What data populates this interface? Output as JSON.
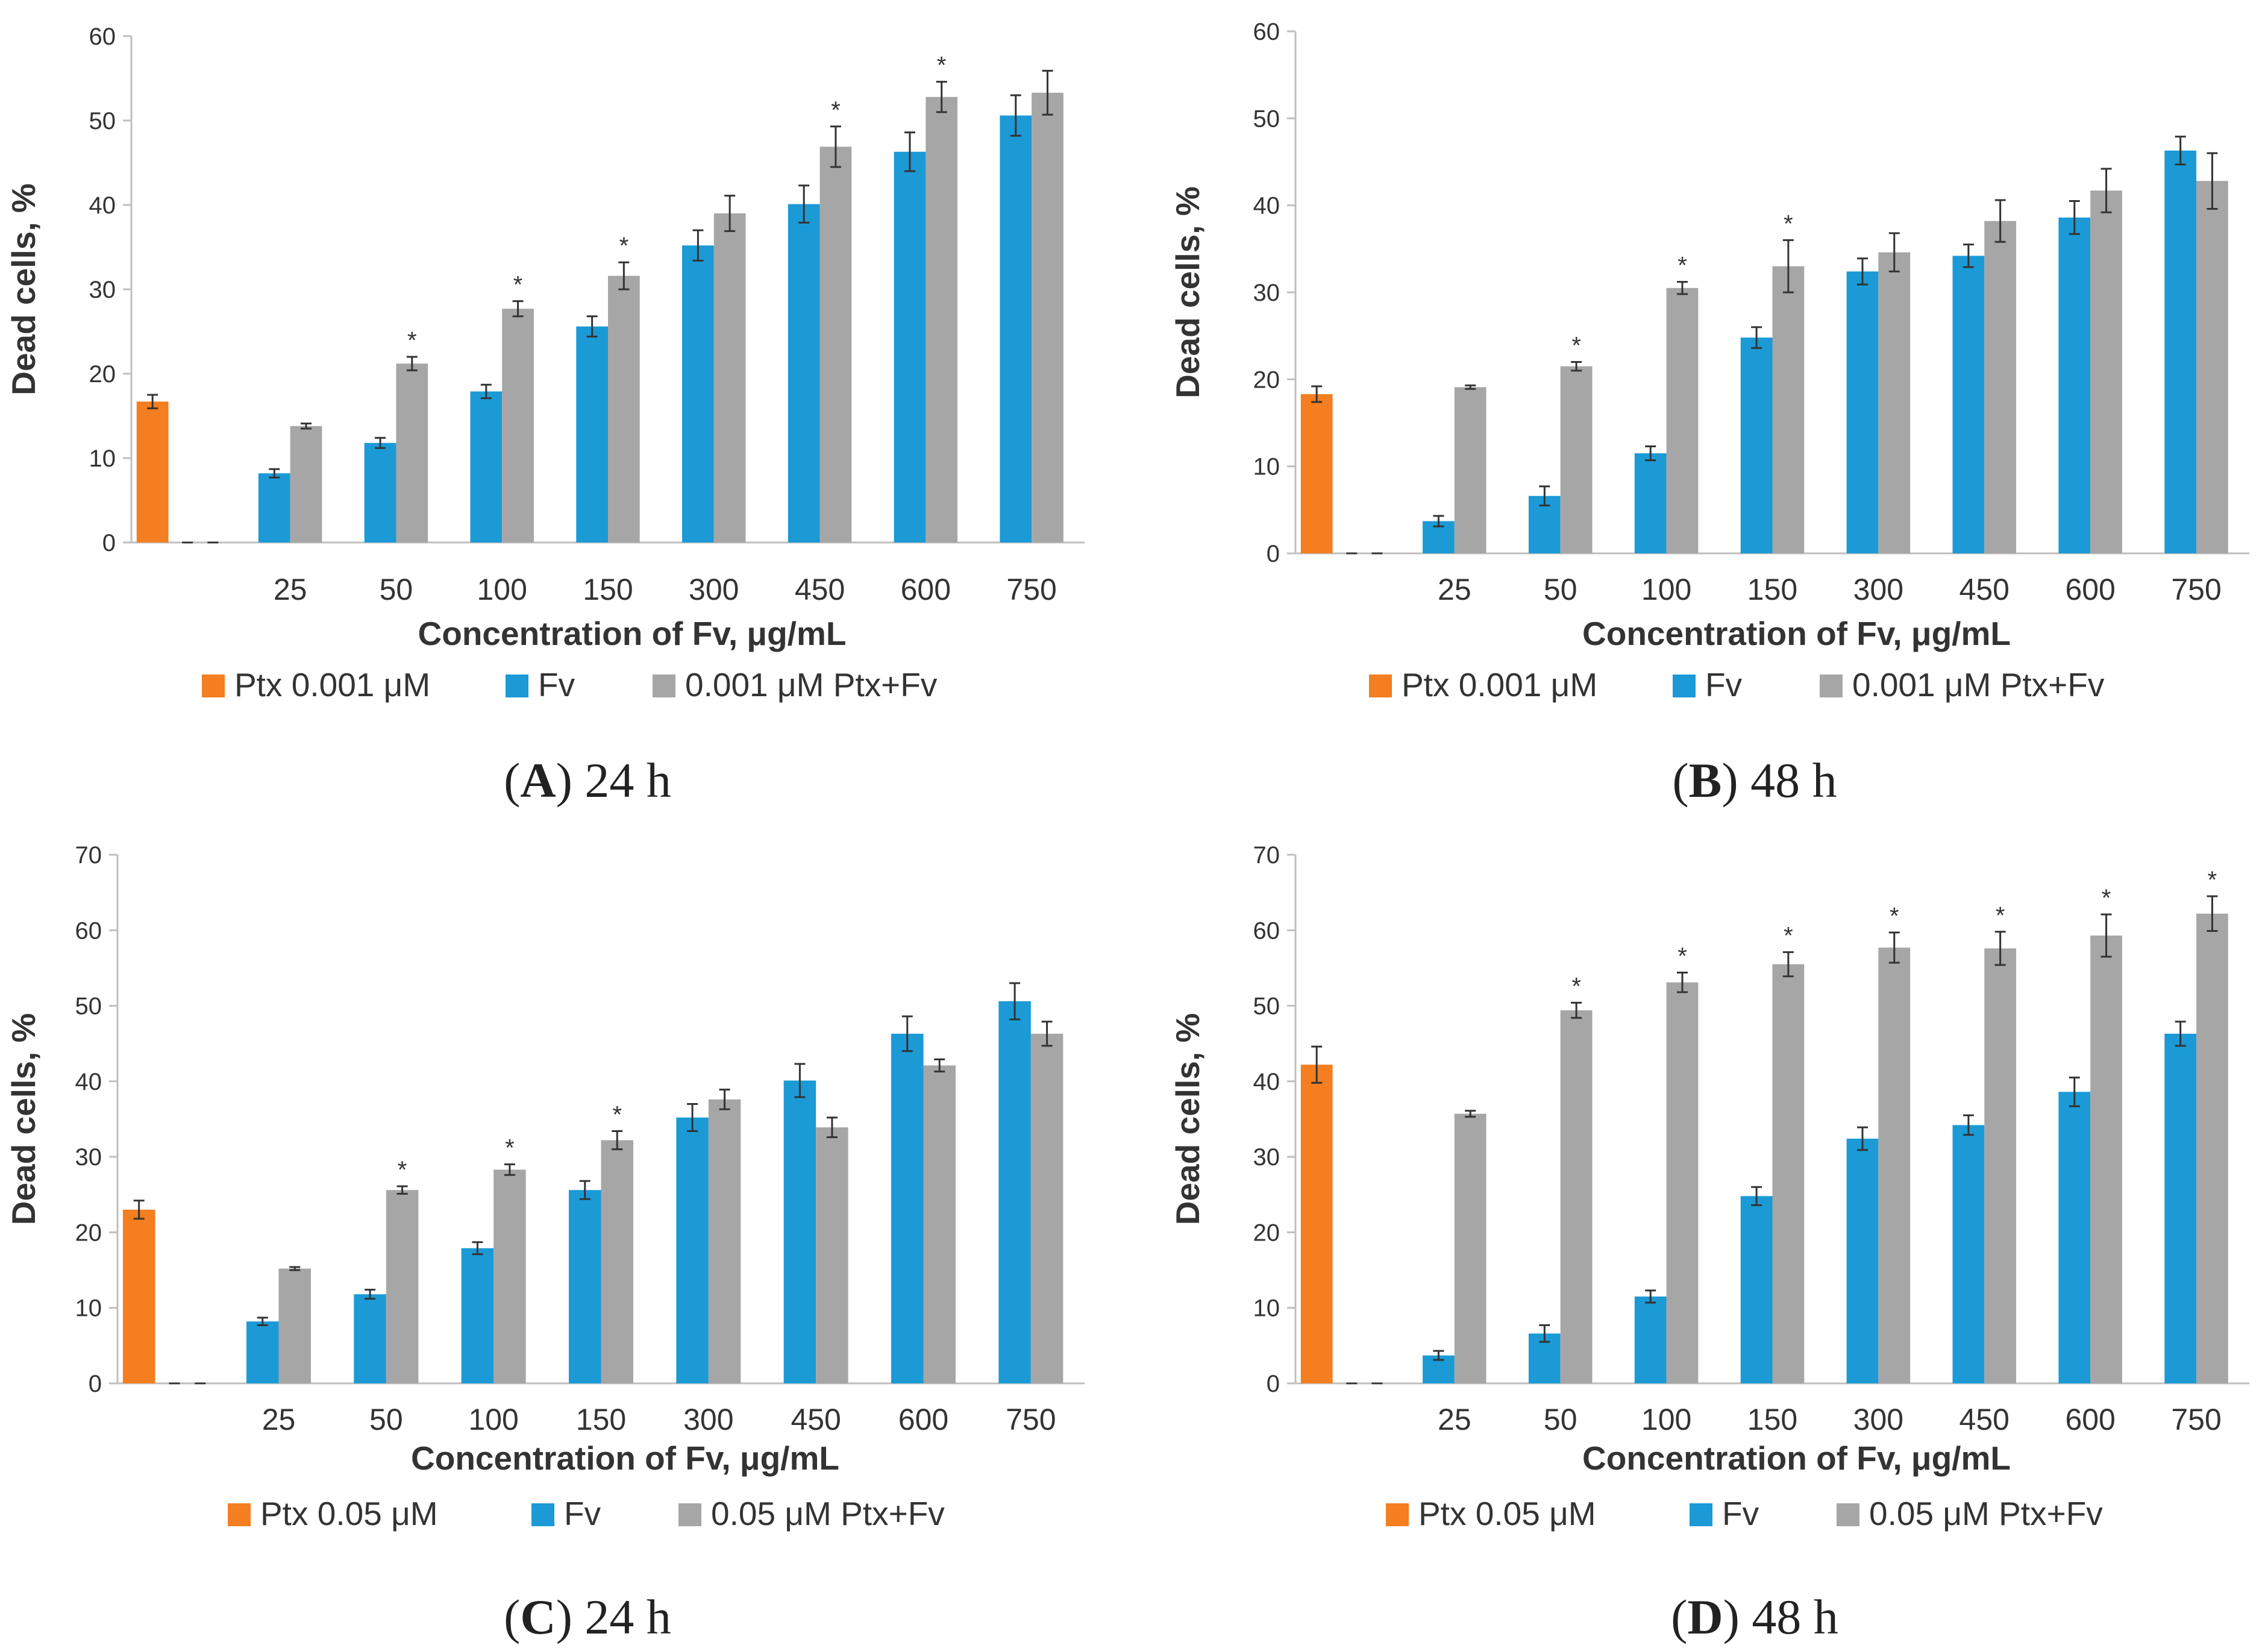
{
  "colors": {
    "ptx": "#F47E20",
    "fv": "#1B9AD6",
    "combo": "#A6A6A6",
    "axis": "#BFBFBF",
    "err": "#333333"
  },
  "chart_data": [
    {
      "type": "bar",
      "panel": "A",
      "caption_letter": "A",
      "caption_time": " 24 h",
      "title": "",
      "xlabel": "Concentration of Fv, μg/mL",
      "ylabel": "Dead cells, %",
      "ylim": [
        0,
        60
      ],
      "yticks": [
        "0",
        "10",
        "20",
        "30",
        "40",
        "50",
        "60"
      ],
      "categories": [
        "",
        "25",
        "50",
        "100",
        "150",
        "300",
        "450",
        "600",
        "750"
      ],
      "series": [
        {
          "name": "Ptx 0.001 μM",
          "color": "#F47E20",
          "values": [
            16.7,
            null,
            null,
            null,
            null,
            null,
            null,
            null,
            null
          ],
          "errors": [
            0.8,
            null,
            null,
            null,
            null,
            null,
            null,
            null,
            null
          ]
        },
        {
          "name": "Fv",
          "color": "#1B9AD6",
          "values": [
            0,
            8.2,
            11.8,
            17.9,
            25.6,
            35.2,
            40.1,
            46.3,
            50.6
          ],
          "errors": [
            0,
            0.5,
            0.6,
            0.8,
            1.2,
            1.8,
            2.2,
            2.3,
            2.4
          ]
        },
        {
          "name": "0.001 μM Ptx+Fv",
          "color": "#A6A6A6",
          "values": [
            0,
            13.8,
            21.2,
            27.7,
            31.6,
            39.0,
            46.9,
            52.8,
            53.3
          ],
          "errors": [
            0,
            0.3,
            0.8,
            0.9,
            1.6,
            2.1,
            2.4,
            1.8,
            2.6
          ]
        }
      ],
      "significant": [
        false,
        false,
        true,
        true,
        true,
        false,
        true,
        true,
        false
      ],
      "legend": [
        "Ptx 0.001 μM",
        "Fv",
        "0.001 μM Ptx+Fv"
      ],
      "legend_position": "bottom"
    },
    {
      "type": "bar",
      "panel": "B",
      "caption_letter": "B",
      "caption_time": " 48 h",
      "title": "",
      "xlabel": "Concentration of Fv, μg/mL",
      "ylabel": "Dead cells, %",
      "ylim": [
        0,
        60
      ],
      "yticks": [
        "0",
        "10",
        "20",
        "30",
        "40",
        "50",
        "60"
      ],
      "categories": [
        "",
        "25",
        "50",
        "100",
        "150",
        "300",
        "450",
        "600",
        "750"
      ],
      "series": [
        {
          "name": "Ptx 0.001 μM",
          "color": "#F47E20",
          "values": [
            18.3,
            null,
            null,
            null,
            null,
            null,
            null,
            null,
            null
          ],
          "errors": [
            0.9,
            null,
            null,
            null,
            null,
            null,
            null,
            null,
            null
          ]
        },
        {
          "name": "Fv",
          "color": "#1B9AD6",
          "values": [
            0,
            3.7,
            6.6,
            11.5,
            24.8,
            32.4,
            34.2,
            38.6,
            46.3
          ],
          "errors": [
            0,
            0.6,
            1.1,
            0.8,
            1.2,
            1.5,
            1.3,
            1.9,
            1.6
          ]
        },
        {
          "name": "0.001 μM Ptx+Fv",
          "color": "#A6A6A6",
          "values": [
            0,
            19.1,
            21.5,
            30.5,
            33.0,
            34.6,
            38.2,
            41.7,
            42.8
          ],
          "errors": [
            0,
            0.2,
            0.5,
            0.7,
            3.0,
            2.2,
            2.4,
            2.5,
            3.2
          ]
        }
      ],
      "significant": [
        false,
        false,
        true,
        true,
        true,
        false,
        false,
        false,
        false
      ],
      "legend": [
        "Ptx 0.001 μM",
        "Fv",
        "0.001 μM Ptx+Fv"
      ],
      "legend_position": "bottom"
    },
    {
      "type": "bar",
      "panel": "C",
      "caption_letter": "C",
      "caption_time": " 24 h",
      "title": "",
      "xlabel": "Concentration of Fv, μg/mL",
      "ylabel": "Dead cells, %",
      "ylim": [
        0,
        70
      ],
      "yticks": [
        "0",
        "10",
        "20",
        "30",
        "40",
        "50",
        "60",
        "70"
      ],
      "categories": [
        "",
        "25",
        "50",
        "100",
        "150",
        "300",
        "450",
        "600",
        "750"
      ],
      "series": [
        {
          "name": "Ptx 0.05 μM",
          "color": "#F47E20",
          "values": [
            23.0,
            null,
            null,
            null,
            null,
            null,
            null,
            null,
            null
          ],
          "errors": [
            1.2,
            null,
            null,
            null,
            null,
            null,
            null,
            null,
            null
          ]
        },
        {
          "name": "Fv",
          "color": "#1B9AD6",
          "values": [
            0,
            8.2,
            11.8,
            17.9,
            25.6,
            35.2,
            40.1,
            46.3,
            50.6
          ],
          "errors": [
            0,
            0.5,
            0.6,
            0.8,
            1.2,
            1.8,
            2.2,
            2.3,
            2.4
          ]
        },
        {
          "name": "0.05 μM Ptx+Fv",
          "color": "#A6A6A6",
          "values": [
            0,
            15.2,
            25.6,
            28.3,
            32.2,
            37.6,
            33.9,
            42.1,
            46.3
          ],
          "errors": [
            0,
            0.2,
            0.5,
            0.7,
            1.2,
            1.3,
            1.3,
            0.8,
            1.6
          ]
        }
      ],
      "significant": [
        false,
        false,
        true,
        true,
        true,
        false,
        false,
        false,
        false
      ],
      "legend": [
        "Ptx 0.05 μM",
        "Fv",
        "0.05 μM Ptx+Fv"
      ],
      "legend_position": "bottom"
    },
    {
      "type": "bar",
      "panel": "D",
      "caption_letter": "D",
      "caption_time": " 48 h",
      "title": "",
      "xlabel": "Concentration of Fv, μg/mL",
      "ylabel": "Dead cells, %",
      "ylim": [
        0,
        70
      ],
      "yticks": [
        "0",
        "10",
        "20",
        "30",
        "40",
        "50",
        "60",
        "70"
      ],
      "categories": [
        "",
        "25",
        "50",
        "100",
        "150",
        "300",
        "450",
        "600",
        "750"
      ],
      "series": [
        {
          "name": "Ptx 0.05 μM",
          "color": "#F47E20",
          "values": [
            42.2,
            null,
            null,
            null,
            null,
            null,
            null,
            null,
            null
          ],
          "errors": [
            2.4,
            null,
            null,
            null,
            null,
            null,
            null,
            null,
            null
          ]
        },
        {
          "name": "Fv",
          "color": "#1B9AD6",
          "values": [
            0,
            3.7,
            6.6,
            11.5,
            24.8,
            32.4,
            34.2,
            38.6,
            46.3
          ],
          "errors": [
            0,
            0.6,
            1.1,
            0.8,
            1.2,
            1.5,
            1.3,
            1.9,
            1.6
          ]
        },
        {
          "name": "0.05 μM Ptx+Fv",
          "color": "#A6A6A6",
          "values": [
            0,
            35.7,
            49.4,
            53.1,
            55.5,
            57.7,
            57.6,
            59.3,
            62.2
          ],
          "errors": [
            0,
            0.4,
            1.0,
            1.3,
            1.6,
            2.0,
            2.2,
            2.8,
            2.3
          ]
        }
      ],
      "significant": [
        false,
        false,
        true,
        true,
        true,
        true,
        true,
        true,
        true
      ],
      "legend": [
        "Ptx 0.05 μM",
        "Fv",
        "0.05 μM Ptx+Fv"
      ],
      "legend_position": "bottom"
    }
  ]
}
